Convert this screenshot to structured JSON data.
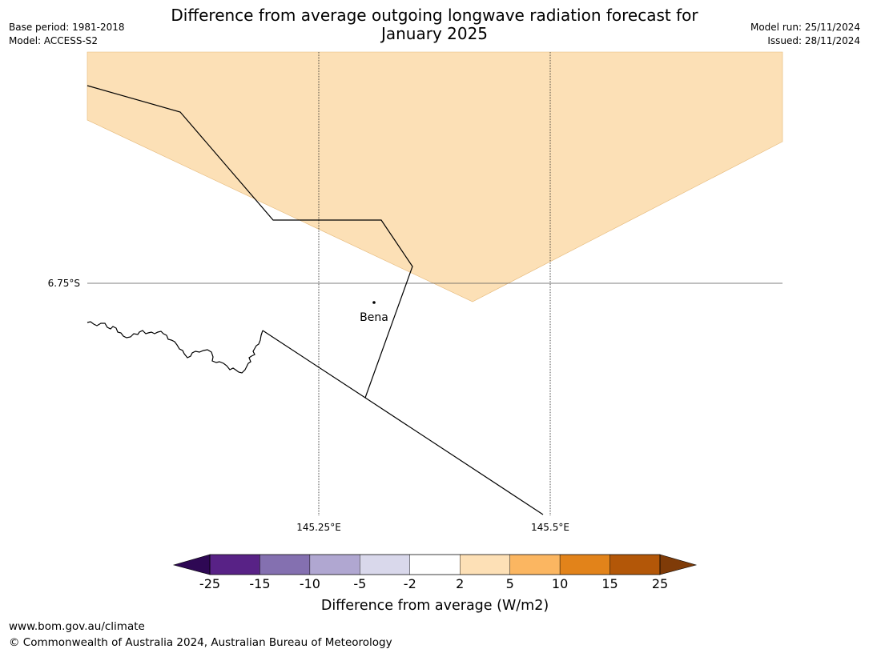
{
  "header": {
    "title_line1": "Difference from average outgoing longwave radiation forecast for",
    "title_line2": "January 2025",
    "base_period": "Base period: 1981-2018",
    "model": "Model: ACCESS-S2",
    "model_run": "Model run: 25/11/2024",
    "issued": "Issued: 28/11/2024"
  },
  "map": {
    "latitude_labels": [
      "6.75°S"
    ],
    "longitude_labels": [
      "145.25°E",
      "145.5°E"
    ],
    "place": {
      "name": "Bena"
    },
    "anomaly_fill_color": "#fce0b6",
    "anomaly_range": "2 to 5"
  },
  "colorbar": {
    "label": "Difference from average (W/m2)",
    "ticks": [
      "-25",
      "-15",
      "-10",
      "-5",
      "-2",
      "2",
      "5",
      "10",
      "15",
      "25"
    ],
    "colors": [
      "#582286",
      "#8470b0",
      "#b0a7d1",
      "#d9d8eb",
      "#ffffff",
      "#fde0b6",
      "#fbb661",
      "#e2831a",
      "#b35708"
    ],
    "extend_low_color": "#2e0854",
    "extend_high_color": "#7f3b08"
  },
  "footer": {
    "url": "www.bom.gov.au/climate",
    "copyright": "© Commonwealth of Australia 2024, Australian Bureau of Meteorology"
  }
}
